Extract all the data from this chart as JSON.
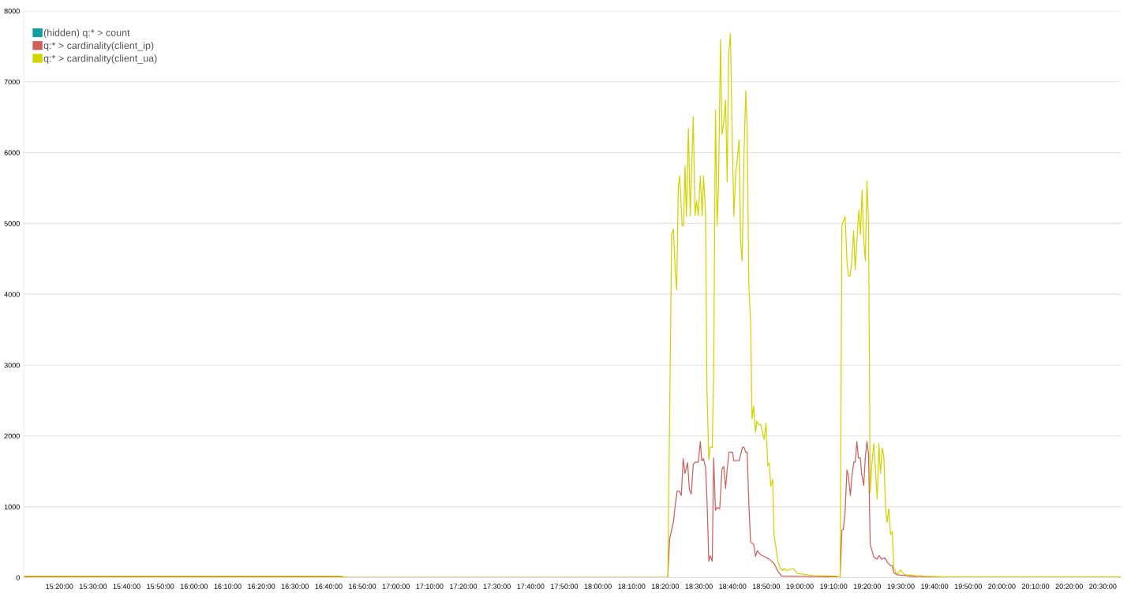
{
  "chart_data": {
    "type": "line",
    "xlim": [
      15.157,
      20.589
    ],
    "ylim": [
      0,
      8000
    ],
    "yticks": [
      0,
      1000,
      2000,
      3000,
      4000,
      5000,
      6000,
      7000,
      8000
    ],
    "xticks": [
      {
        "value": 15.3333,
        "label": "15:20:00"
      },
      {
        "value": 15.5,
        "label": "15:30:00"
      },
      {
        "value": 15.6667,
        "label": "15:40:00"
      },
      {
        "value": 15.8333,
        "label": "15:50:00"
      },
      {
        "value": 16.0,
        "label": "16:00:00"
      },
      {
        "value": 16.1667,
        "label": "16:10:00"
      },
      {
        "value": 16.3333,
        "label": "16:20:00"
      },
      {
        "value": 16.5,
        "label": "16:30:00"
      },
      {
        "value": 16.6667,
        "label": "16:40:00"
      },
      {
        "value": 16.8333,
        "label": "16:50:00"
      },
      {
        "value": 17.0,
        "label": "17:00:00"
      },
      {
        "value": 17.1667,
        "label": "17:10:00"
      },
      {
        "value": 17.3333,
        "label": "17:20:00"
      },
      {
        "value": 17.5,
        "label": "17:30:00"
      },
      {
        "value": 17.6667,
        "label": "17:40:00"
      },
      {
        "value": 17.8333,
        "label": "17:50:00"
      },
      {
        "value": 18.0,
        "label": "18:00:00"
      },
      {
        "value": 18.1667,
        "label": "18:10:00"
      },
      {
        "value": 18.3333,
        "label": "18:20:00"
      },
      {
        "value": 18.5,
        "label": "18:30:00"
      },
      {
        "value": 18.6667,
        "label": "18:40:00"
      },
      {
        "value": 18.8333,
        "label": "18:50:00"
      },
      {
        "value": 19.0,
        "label": "19:00:00"
      },
      {
        "value": 19.1667,
        "label": "19:10:00"
      },
      {
        "value": 19.3333,
        "label": "19:20:00"
      },
      {
        "value": 19.5,
        "label": "19:30:00"
      },
      {
        "value": 19.6667,
        "label": "19:40:00"
      },
      {
        "value": 19.8333,
        "label": "19:50:00"
      },
      {
        "value": 20.0,
        "label": "20:00:00"
      },
      {
        "value": 20.1667,
        "label": "20:10:00"
      },
      {
        "value": 20.3333,
        "label": "20:20:00"
      },
      {
        "value": 20.5,
        "label": "20:30:00"
      }
    ],
    "grid": "y",
    "legend": "top left",
    "series": [
      {
        "name": "(hidden) q:* > count",
        "color": "#119e9e"
      },
      {
        "name": "q:* > cardinality(client_ip)",
        "color": "#d0605e",
        "x": [
          15.157,
          16.728,
          16.76,
          18.346,
          18.355,
          18.374,
          18.383,
          18.392,
          18.403,
          18.413,
          18.422,
          18.431,
          18.444,
          18.453,
          18.462,
          18.472,
          18.481,
          18.497,
          18.507,
          18.514,
          18.523,
          18.533,
          18.54,
          18.549,
          18.556,
          18.566,
          18.573,
          18.582,
          18.59,
          18.603,
          18.614,
          18.623,
          18.632,
          18.64,
          18.649,
          18.666,
          18.673,
          18.699,
          18.716,
          18.723,
          18.732,
          18.739,
          18.747,
          18.756,
          18.771,
          18.78,
          18.789,
          18.806,
          18.823,
          18.848,
          18.872,
          18.891,
          18.909,
          18.946,
          19.183,
          19.199,
          19.208,
          19.215,
          19.224,
          19.233,
          19.24,
          19.25,
          19.259,
          19.267,
          19.274,
          19.282,
          19.29,
          19.299,
          19.306,
          19.316,
          19.324,
          19.332,
          19.34,
          19.348,
          19.356,
          19.366,
          19.381,
          19.393,
          19.404,
          19.42,
          19.435,
          19.448,
          19.457,
          19.465,
          19.482,
          19.522,
          19.576,
          20.589
        ],
        "values": [
          10,
          10,
          0,
          0,
          550,
          790,
          1030,
          1220,
          1220,
          1160,
          1680,
          1470,
          1620,
          1240,
          1180,
          1600,
          1630,
          1630,
          1920,
          1650,
          1680,
          1550,
          1100,
          230,
          310,
          230,
          1690,
          950,
          990,
          970,
          1530,
          1570,
          1260,
          1530,
          1770,
          1770,
          1650,
          1650,
          1840,
          1840,
          1770,
          1770,
          1050,
          500,
          470,
          300,
          380,
          320,
          300,
          260,
          200,
          90,
          20,
          20,
          10,
          0,
          670,
          680,
          940,
          1520,
          1440,
          1160,
          1470,
          1630,
          1630,
          1920,
          1690,
          1690,
          1460,
          1300,
          1700,
          1920,
          1740,
          470,
          390,
          290,
          260,
          310,
          260,
          280,
          210,
          170,
          170,
          70,
          40,
          30,
          10,
          0
        ]
      },
      {
        "name": "q:* > cardinality(client_ua)",
        "color": "#d2d400",
        "x": [
          15.157,
          16.728,
          16.76,
          18.346,
          18.365,
          18.374,
          18.383,
          18.39,
          18.398,
          18.405,
          18.417,
          18.424,
          18.431,
          18.438,
          18.448,
          18.457,
          18.472,
          18.481,
          18.488,
          18.497,
          18.507,
          18.516,
          18.523,
          18.533,
          18.54,
          18.549,
          18.556,
          18.566,
          18.573,
          18.582,
          18.59,
          18.597,
          18.607,
          18.614,
          18.623,
          18.632,
          18.64,
          18.647,
          18.656,
          18.666,
          18.673,
          18.682,
          18.689,
          18.699,
          18.706,
          18.714,
          18.723,
          18.732,
          18.739,
          18.747,
          18.756,
          18.763,
          18.771,
          18.78,
          18.787,
          18.796,
          18.806,
          18.815,
          18.823,
          18.832,
          18.841,
          18.848,
          18.856,
          18.865,
          18.872,
          18.882,
          18.891,
          18.902,
          18.915,
          18.924,
          18.932,
          18.968,
          18.987,
          19.065,
          19.183,
          19.199,
          19.208,
          19.224,
          19.233,
          19.24,
          19.249,
          19.257,
          19.266,
          19.274,
          19.284,
          19.292,
          19.3,
          19.308,
          19.316,
          19.324,
          19.332,
          19.34,
          19.348,
          19.356,
          19.366,
          19.374,
          19.383,
          19.391,
          19.399,
          19.408,
          19.416,
          19.424,
          19.432,
          19.44,
          19.449,
          19.457,
          19.465,
          19.475,
          19.484,
          19.498,
          19.514,
          19.529,
          19.569,
          19.623,
          19.729,
          20.589
        ],
        "values": [
          20,
          20,
          0,
          0,
          4840,
          4920,
          4310,
          4060,
          5520,
          5670,
          4970,
          4970,
          5810,
          5100,
          6340,
          5110,
          6510,
          5110,
          5320,
          5110,
          5670,
          5110,
          5670,
          5130,
          2630,
          1660,
          1840,
          1840,
          2890,
          6600,
          4970,
          5520,
          7600,
          6260,
          6420,
          6740,
          5590,
          7370,
          7680,
          6050,
          5100,
          5710,
          5890,
          6180,
          4760,
          4470,
          5940,
          6870,
          6310,
          4150,
          3580,
          2240,
          2420,
          2050,
          2210,
          2160,
          2160,
          2050,
          1950,
          2180,
          1580,
          1620,
          1290,
          1390,
          600,
          420,
          230,
          130,
          100,
          130,
          100,
          130,
          60,
          30,
          20,
          0,
          4970,
          5100,
          4470,
          4260,
          4260,
          4470,
          4900,
          4350,
          4850,
          5190,
          4840,
          5470,
          4780,
          4470,
          5600,
          5010,
          1200,
          1590,
          1890,
          1510,
          1110,
          1890,
          1470,
          1830,
          1700,
          970,
          780,
          970,
          610,
          650,
          140,
          70,
          50,
          110,
          50,
          40,
          30,
          20,
          10,
          10
        ]
      }
    ]
  }
}
